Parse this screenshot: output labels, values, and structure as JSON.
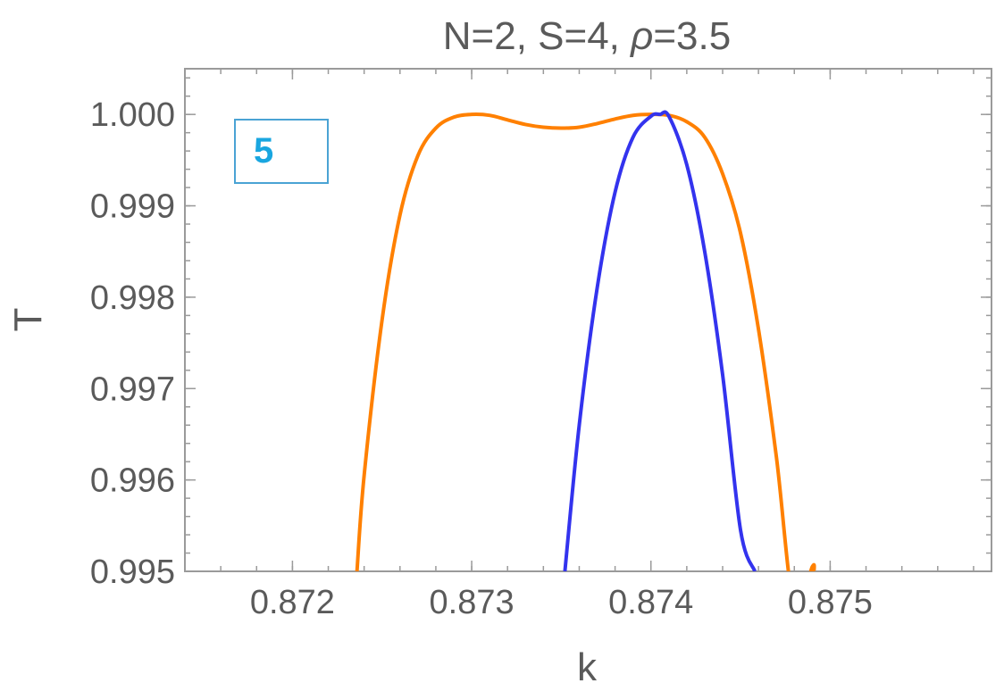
{
  "chart_data": {
    "type": "line",
    "title_parts": [
      "N=2, S=4, ",
      "ρ",
      "=3.5"
    ],
    "xlabel": "k",
    "ylabel": "T",
    "xlim": [
      0.8714,
      0.8759
    ],
    "ylim": [
      0.995,
      1.0005
    ],
    "x_ticks": [
      0.872,
      0.873,
      0.874,
      0.875
    ],
    "x_tick_labels": [
      "0.872",
      "0.873",
      "0.874",
      "0.875"
    ],
    "y_ticks": [
      0.995,
      0.996,
      0.997,
      0.998,
      0.999,
      1.0
    ],
    "y_tick_labels": [
      "0.995",
      "0.996",
      "0.997",
      "0.998",
      "0.999",
      "1.000"
    ],
    "grid": false,
    "series": [
      {
        "color": "#ff8000",
        "x": [
          0.87236,
          0.8724,
          0.8725,
          0.8726,
          0.8727,
          0.8728,
          0.8729,
          0.873,
          0.8731,
          0.8732,
          0.8733,
          0.8734,
          0.8735,
          0.8736,
          0.8737,
          0.8738,
          0.8739,
          0.874,
          0.8741,
          0.8742,
          0.8743,
          0.8744,
          0.8745,
          0.8746,
          0.8747,
          0.8748,
          0.8749,
          0.87491
        ],
        "y": [
          0.995,
          0.99605,
          0.99775,
          0.9989,
          0.99955,
          0.99985,
          0.99997,
          1.0,
          0.99999,
          0.99994,
          0.99989,
          0.99986,
          0.99985,
          0.99986,
          0.9999,
          0.99995,
          0.99999,
          1.0,
          0.99999,
          0.99992,
          0.99975,
          0.99935,
          0.9987,
          0.99765,
          0.99625,
          0.9946,
          0.99505,
          0.995
        ]
      },
      {
        "color": "#3333ee",
        "x": [
          0.87352,
          0.8736,
          0.8737,
          0.8738,
          0.8739,
          0.874,
          0.87405,
          0.8741,
          0.8742,
          0.8743,
          0.8744,
          0.8745,
          0.87458
        ],
        "y": [
          0.995,
          0.9966,
          0.9981,
          0.99915,
          0.99975,
          0.99998,
          1.0,
          0.99998,
          0.99945,
          0.9985,
          0.99715,
          0.99545,
          0.995
        ]
      }
    ]
  },
  "panel_label": "5"
}
